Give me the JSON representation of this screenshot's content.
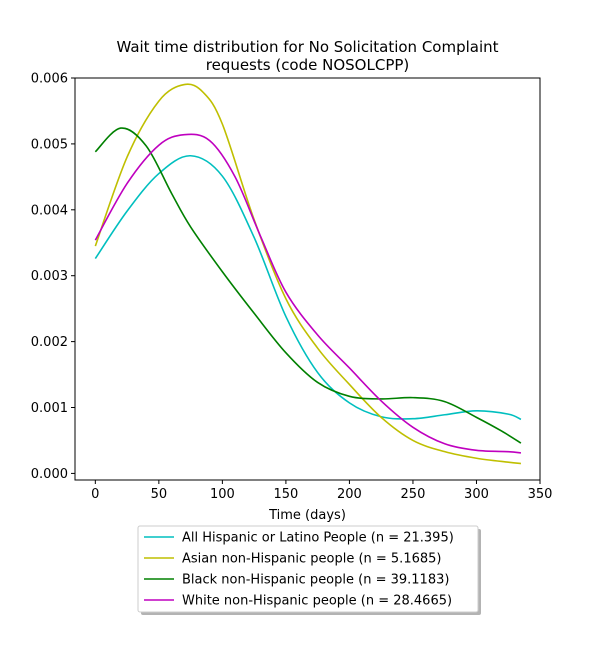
{
  "chart_data": {
    "type": "line",
    "title_lines": [
      "Wait time distribution  for No Solicitation Complaint",
      "requests (code NOSOLCPP)"
    ],
    "xlabel": "Time (days)",
    "ylabel": "",
    "xlim": [
      -16,
      350
    ],
    "ylim": [
      -0.0001,
      0.006
    ],
    "x_ticks": [
      0,
      50,
      100,
      150,
      200,
      250,
      300,
      350
    ],
    "x_tick_labels": [
      "0",
      "50",
      "100",
      "150",
      "200",
      "250",
      "300",
      "350"
    ],
    "y_ticks": [
      0.0,
      0.001,
      0.002,
      0.003,
      0.004,
      0.005,
      0.006
    ],
    "y_tick_labels": [
      "0.000",
      "0.001",
      "0.002",
      "0.003",
      "0.004",
      "0.005",
      "0.006"
    ],
    "grid": false,
    "legend_placement": "below",
    "series": [
      {
        "name": "All Hispanic or Latino People (n = 21.395)",
        "color": "#00bfbf",
        "x": [
          0,
          25,
          50,
          75,
          100,
          125,
          150,
          175,
          200,
          225,
          250,
          275,
          300,
          325,
          335
        ],
        "y": [
          0.00326,
          0.00398,
          0.00455,
          0.00482,
          0.00451,
          0.00358,
          0.00238,
          0.00153,
          0.00107,
          0.00086,
          0.00083,
          0.00089,
          0.00095,
          0.0009,
          0.00082
        ]
      },
      {
        "name": "Asian non-Hispanic people (n = 5.1685)",
        "color": "#bfbf00",
        "x": [
          0,
          25,
          50,
          70,
          85,
          100,
          125,
          150,
          175,
          200,
          225,
          250,
          275,
          300,
          325,
          335
        ],
        "y": [
          0.00345,
          0.0048,
          0.00565,
          0.0059,
          0.00578,
          0.0053,
          0.00385,
          0.00265,
          0.0019,
          0.00135,
          0.00085,
          0.0005,
          0.00033,
          0.00023,
          0.00017,
          0.00015
        ]
      },
      {
        "name": "Black non-Hispanic people (n = 39.1183)",
        "color": "#008000",
        "x": [
          0,
          20,
          40,
          60,
          75,
          100,
          125,
          150,
          175,
          200,
          225,
          250,
          275,
          300,
          320,
          335
        ],
        "y": [
          0.00488,
          0.00524,
          0.00497,
          0.00425,
          0.00374,
          0.00306,
          0.00243,
          0.00183,
          0.00138,
          0.00117,
          0.00113,
          0.00115,
          0.00109,
          0.00085,
          0.00064,
          0.00046
        ]
      },
      {
        "name": "White non-Hispanic people (n = 28.4665)",
        "color": "#bf00bf",
        "x": [
          0,
          25,
          50,
          70,
          90,
          110,
          130,
          150,
          175,
          200,
          225,
          250,
          275,
          300,
          325,
          335
        ],
        "y": [
          0.00354,
          0.0044,
          0.00498,
          0.00514,
          0.00505,
          0.0045,
          0.0036,
          0.00275,
          0.0021,
          0.0016,
          0.0011,
          0.0007,
          0.00045,
          0.00035,
          0.00033,
          0.00031
        ]
      }
    ]
  }
}
